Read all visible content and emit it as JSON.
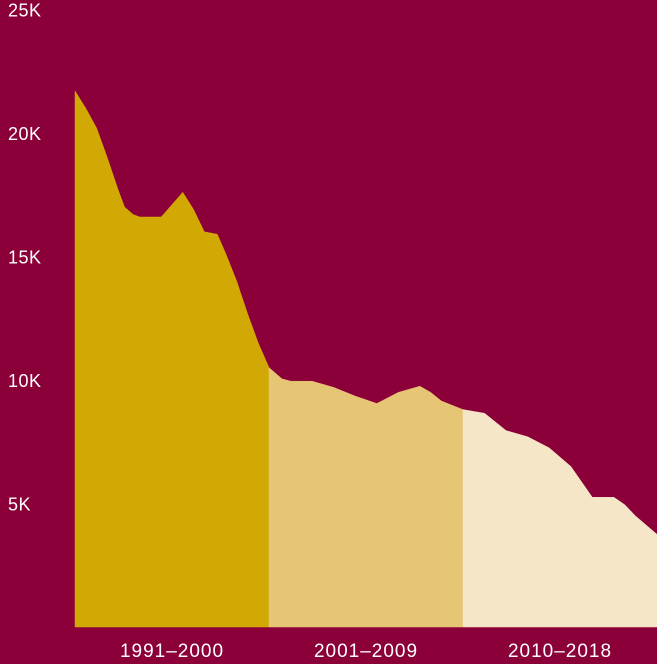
{
  "chart_data": {
    "type": "area",
    "title": "",
    "xlabel": "",
    "ylabel": "",
    "ylim": [
      0,
      25000
    ],
    "y_ticks": [
      {
        "value": 5000,
        "label": "5K"
      },
      {
        "value": 10000,
        "label": "10K"
      },
      {
        "value": 15000,
        "label": "15K"
      },
      {
        "value": 20000,
        "label": "20K"
      },
      {
        "value": 25000,
        "label": "25K"
      }
    ],
    "grid": false,
    "x_range": [
      1991,
      2018
    ],
    "categories": [
      "1991–2000",
      "2001–2009",
      "2010–2018"
    ],
    "series": [
      {
        "label": "1991–2000",
        "color": "#d2a904",
        "x": [
          1991,
          1991.5,
          1992,
          1992.5,
          1993,
          1993.3,
          1993.7,
          1994,
          1995,
          1995.5,
          1996,
          1996.5,
          1997,
          1997.6,
          1998,
          1998.5,
          1999,
          1999.5,
          2000
        ],
        "y": [
          21700,
          21000,
          20200,
          19000,
          17700,
          17000,
          16700,
          16600,
          16600,
          17100,
          17600,
          16900,
          16000,
          15900,
          15100,
          14000,
          12700,
          11500,
          10500
        ]
      },
      {
        "label": "2001–2009",
        "color": "#e6c574",
        "x": [
          2000,
          2000.6,
          2001,
          2002,
          2003,
          2004,
          2005,
          2006,
          2007,
          2007.5,
          2008,
          2009
        ],
        "y": [
          10500,
          10050,
          9950,
          9950,
          9700,
          9350,
          9050,
          9500,
          9750,
          9500,
          9150,
          8800
        ]
      },
      {
        "label": "2010–2018",
        "color": "#f5e6c8",
        "x": [
          2009,
          2010,
          2011,
          2012,
          2013,
          2014,
          2015,
          2016,
          2016.5,
          2017,
          2018
        ],
        "y": [
          8800,
          8650,
          7950,
          7700,
          7250,
          6500,
          5250,
          5250,
          4950,
          4500,
          3750
        ]
      }
    ]
  }
}
